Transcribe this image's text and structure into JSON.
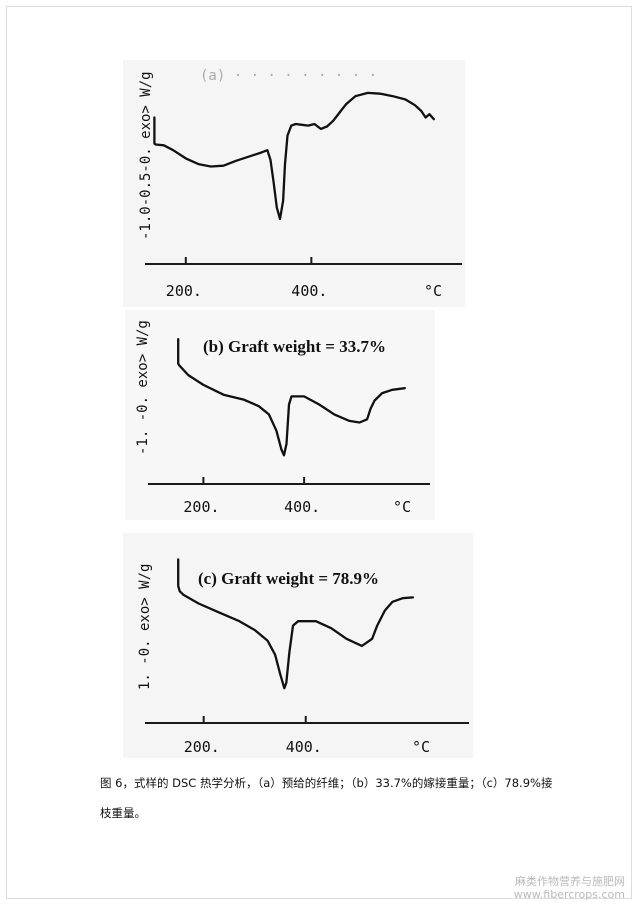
{
  "chart_data": [
    {
      "type": "line",
      "title": "",
      "xlabel": "°C",
      "ylabel": "exo> W/g",
      "xlim": [
        135,
        640
      ],
      "ylim": [
        -1.5,
        0.15
      ],
      "x_ticks": [
        200,
        400
      ],
      "x_tick_labels": [
        "200.",
        "400."
      ],
      "x_unit_label": "°C",
      "y_ticks": [
        -1.0,
        -0.5,
        0.0
      ],
      "y_axis_label_text": "-1.0-0.5-0. exo> W/g",
      "series": [
        {
          "x": [
            150,
            150,
            152,
            165,
            180,
            200,
            220,
            240,
            260,
            280,
            300,
            320,
            330,
            335,
            340,
            345,
            350,
            355,
            358,
            362,
            368,
            375,
            385,
            395,
            405,
            415,
            425,
            435,
            445,
            455,
            470,
            490,
            510,
            530,
            550,
            565,
            575,
            582,
            588,
            595
          ],
          "y": [
            0.12,
            -0.2,
            -0.21,
            -0.22,
            -0.28,
            -0.38,
            -0.45,
            -0.48,
            -0.47,
            -0.41,
            -0.36,
            -0.31,
            -0.28,
            -0.4,
            -0.68,
            -0.98,
            -1.12,
            -0.9,
            -0.45,
            -0.1,
            0.02,
            0.04,
            0.03,
            0.02,
            0.04,
            -0.02,
            0.01,
            0.08,
            0.18,
            0.28,
            0.38,
            0.42,
            0.41,
            0.38,
            0.34,
            0.27,
            0.2,
            0.12,
            0.16,
            0.1
          ]
        }
      ]
    },
    {
      "type": "line",
      "title": "(b) Graft weight = 33.7%",
      "xlabel": "°C",
      "ylabel": "exo> W/g",
      "xlim": [
        90,
        650
      ],
      "ylim": [
        -1.3,
        0.35
      ],
      "x_ticks": [
        200,
        400
      ],
      "x_tick_labels": [
        "200.",
        "400."
      ],
      "x_unit_label": "°C",
      "y_ticks": [
        -1.0,
        0.0
      ],
      "y_axis_label_text": "-1.  -0. exo> W/g",
      "series": [
        {
          "x": [
            150,
            150,
            152,
            170,
            200,
            240,
            280,
            310,
            330,
            345,
            355,
            360,
            365,
            370,
            375,
            380,
            400,
            430,
            460,
            490,
            510,
            525,
            532,
            540,
            555,
            575,
            600
          ],
          "y": [
            0.3,
            0.0,
            -0.02,
            -0.14,
            -0.26,
            -0.38,
            -0.44,
            -0.52,
            -0.62,
            -0.82,
            -1.05,
            -1.12,
            -0.98,
            -0.5,
            -0.4,
            -0.4,
            -0.4,
            -0.5,
            -0.62,
            -0.7,
            -0.72,
            -0.68,
            -0.55,
            -0.45,
            -0.36,
            -0.32,
            -0.3
          ]
        }
      ]
    },
    {
      "type": "line",
      "title": "(c) Graft weight = 78.9%",
      "xlabel": "°C",
      "ylabel": "exo> W/g",
      "xlim": [
        85,
        720
      ],
      "ylim": [
        -1.35,
        0.35
      ],
      "x_ticks": [
        200,
        400
      ],
      "x_tick_labels": [
        "200.",
        "400."
      ],
      "x_unit_label": "°C",
      "y_ticks": [
        -1.0,
        0.0
      ],
      "y_axis_label_text": "1.  -0. exo> W/g",
      "series": [
        {
          "x": [
            150,
            150,
            153,
            160,
            190,
            230,
            270,
            300,
            325,
            340,
            350,
            358,
            362,
            368,
            375,
            385,
            420,
            450,
            480,
            510,
            530,
            540,
            555,
            570,
            590,
            610
          ],
          "y": [
            0.3,
            0.0,
            -0.06,
            -0.1,
            -0.2,
            -0.3,
            -0.4,
            -0.5,
            -0.62,
            -0.78,
            -1.0,
            -1.16,
            -1.1,
            -0.75,
            -0.45,
            -0.4,
            -0.4,
            -0.48,
            -0.6,
            -0.68,
            -0.6,
            -0.45,
            -0.28,
            -0.18,
            -0.14,
            -0.13
          ]
        }
      ]
    }
  ],
  "caption": {
    "line1": "图 6，式样的 DSC 热学分析，（a）预给的纤维；（b）33.7%的嫁接重量；（c）78.9%接",
    "line2": "枝重量。"
  },
  "watermark": {
    "line1": "麻类作物营养与施肥网",
    "line2": "www.fibercrops.com"
  }
}
